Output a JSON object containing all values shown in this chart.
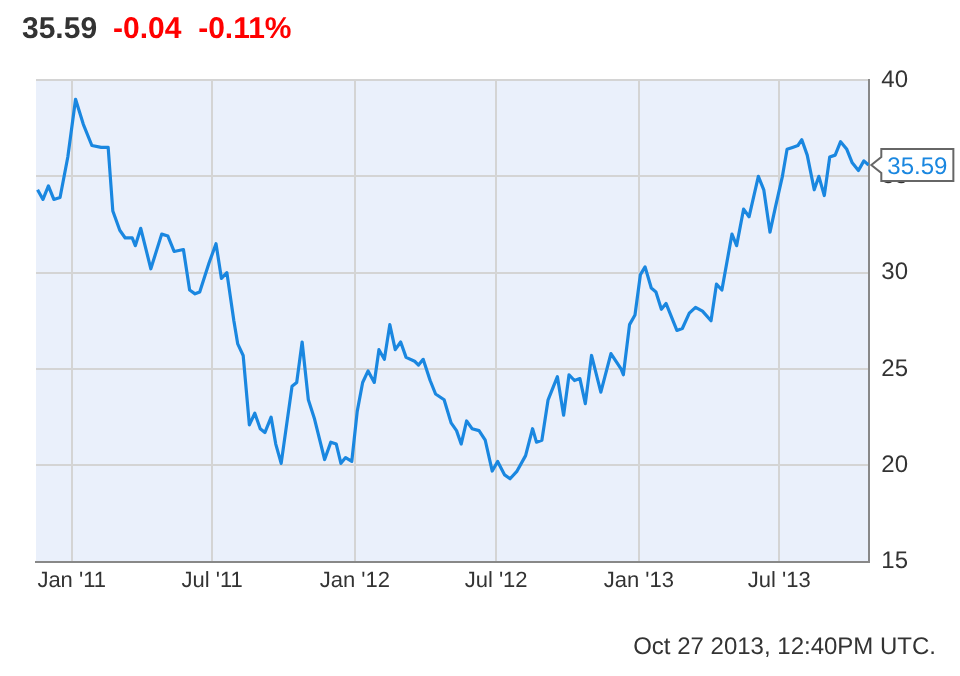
{
  "chart_data": {
    "type": "line",
    "title": "35.59",
    "subtitle": "-0.04  -0.11%",
    "x": [
      "2010-11-18",
      "2010-11-25",
      "2010-12-02",
      "2010-12-09",
      "2010-12-17",
      "2010-12-27",
      "2011-01-06",
      "2011-01-16",
      "2011-01-27",
      "2011-02-08",
      "2011-02-17",
      "2011-02-23",
      "2011-03-04",
      "2011-03-11",
      "2011-03-20",
      "2011-03-24",
      "2011-03-31",
      "2011-04-13",
      "2011-04-27",
      "2011-05-05",
      "2011-05-13",
      "2011-05-25",
      "2011-06-02",
      "2011-06-09",
      "2011-06-15",
      "2011-06-27",
      "2011-07-06",
      "2011-07-13",
      "2011-07-20",
      "2011-07-29",
      "2011-08-03",
      "2011-08-10",
      "2011-08-18",
      "2011-08-25",
      "2011-09-01",
      "2011-09-07",
      "2011-09-15",
      "2011-09-21",
      "2011-09-28",
      "2011-10-12",
      "2011-10-18",
      "2011-10-25",
      "2011-11-02",
      "2011-11-10",
      "2011-11-23",
      "2011-12-01",
      "2011-12-08",
      "2011-12-14",
      "2011-12-20",
      "2011-12-28",
      "2012-01-04",
      "2012-01-11",
      "2012-01-18",
      "2012-01-26",
      "2012-02-01",
      "2012-02-08",
      "2012-02-15",
      "2012-02-22",
      "2012-02-29",
      "2012-03-07",
      "2012-03-18",
      "2012-03-23",
      "2012-03-29",
      "2012-04-07",
      "2012-04-14",
      "2012-04-25",
      "2012-05-04",
      "2012-05-11",
      "2012-05-17",
      "2012-05-24",
      "2012-05-31",
      "2012-06-09",
      "2012-06-17",
      "2012-06-26",
      "2012-07-03",
      "2012-07-12",
      "2012-07-19",
      "2012-07-28",
      "2012-08-08",
      "2012-08-17",
      "2012-08-22",
      "2012-08-29",
      "2012-09-06",
      "2012-09-18",
      "2012-09-26",
      "2012-10-03",
      "2012-10-10",
      "2012-10-17",
      "2012-10-24",
      "2012-11-01",
      "2012-11-13",
      "2012-11-26",
      "2012-12-09",
      "2012-12-12",
      "2012-12-20",
      "2012-12-27",
      "2013-01-03",
      "2013-01-09",
      "2013-01-17",
      "2013-01-23",
      "2013-01-30",
      "2013-02-05",
      "2013-02-19",
      "2013-02-26",
      "2013-03-07",
      "2013-03-15",
      "2013-03-24",
      "2013-04-04",
      "2013-04-11",
      "2013-04-18",
      "2013-05-01",
      "2013-05-07",
      "2013-05-16",
      "2013-05-23",
      "2013-06-04",
      "2013-06-11",
      "2013-06-19",
      "2013-06-26",
      "2013-07-05",
      "2013-07-11",
      "2013-07-18",
      "2013-07-25",
      "2013-07-30",
      "2013-08-06",
      "2013-08-15",
      "2013-08-21",
      "2013-08-28",
      "2013-09-04",
      "2013-09-11",
      "2013-09-18",
      "2013-09-26",
      "2013-10-03",
      "2013-10-11",
      "2013-10-18",
      "2013-10-24"
    ],
    "series": [
      {
        "color": "#1a87e0",
        "values": [
          34.3,
          33.8,
          34.5,
          33.8,
          33.9,
          36.0,
          39.0,
          37.7,
          36.6,
          36.5,
          36.5,
          33.2,
          32.2,
          31.8,
          31.8,
          31.4,
          32.3,
          30.2,
          32.0,
          31.9,
          31.1,
          31.2,
          29.1,
          28.9,
          29.0,
          30.5,
          31.5,
          29.7,
          30.0,
          27.5,
          26.3,
          25.7,
          22.1,
          22.7,
          21.9,
          21.7,
          22.5,
          21.1,
          20.1,
          24.1,
          24.3,
          26.4,
          23.4,
          22.4,
          20.3,
          21.2,
          21.1,
          20.1,
          20.4,
          20.2,
          22.8,
          24.3,
          24.9,
          24.3,
          26.0,
          25.5,
          27.3,
          26.0,
          26.4,
          25.6,
          25.4,
          25.2,
          25.5,
          24.4,
          23.7,
          23.4,
          22.2,
          21.8,
          21.1,
          22.3,
          21.9,
          21.8,
          21.3,
          19.7,
          20.2,
          19.5,
          19.3,
          19.7,
          20.5,
          21.9,
          21.2,
          21.3,
          23.4,
          24.6,
          22.6,
          24.7,
          24.4,
          24.5,
          23.2,
          25.7,
          23.8,
          25.8,
          25.0,
          24.7,
          27.3,
          27.8,
          29.9,
          30.3,
          29.2,
          29.0,
          28.1,
          28.4,
          27.0,
          27.1,
          27.9,
          28.2,
          28.0,
          27.5,
          29.4,
          29.1,
          32.0,
          31.4,
          33.3,
          32.9,
          35.0,
          34.3,
          32.1,
          33.4,
          35.0,
          36.4,
          36.5,
          36.6,
          36.9,
          36.1,
          34.3,
          35.0,
          34.0,
          36.0,
          36.1,
          36.8,
          36.4,
          35.7,
          35.3,
          35.8,
          35.59
        ]
      }
    ],
    "xlim": [
      "2010-11-16",
      "2013-10-25"
    ],
    "xticks": [
      {
        "value": "2011-01-01",
        "label": "Jan '11"
      },
      {
        "value": "2011-07-01",
        "label": "Jul '11"
      },
      {
        "value": "2012-01-01",
        "label": "Jan '12"
      },
      {
        "value": "2012-07-01",
        "label": "Jul '12"
      },
      {
        "value": "2013-01-01",
        "label": "Jan '13"
      },
      {
        "value": "2013-07-01",
        "label": "Jul '13"
      }
    ],
    "ylim": [
      15,
      40
    ],
    "yticks": [
      15,
      20,
      25,
      30,
      35,
      40
    ],
    "grid": true,
    "legend": false,
    "marker": "none",
    "line_style": "solid",
    "annotations": [
      {
        "text": "35.59",
        "x": "2013-10-24",
        "y": 35.59
      },
      "Oct 27 2013, 12:40PM UTC."
    ]
  }
}
